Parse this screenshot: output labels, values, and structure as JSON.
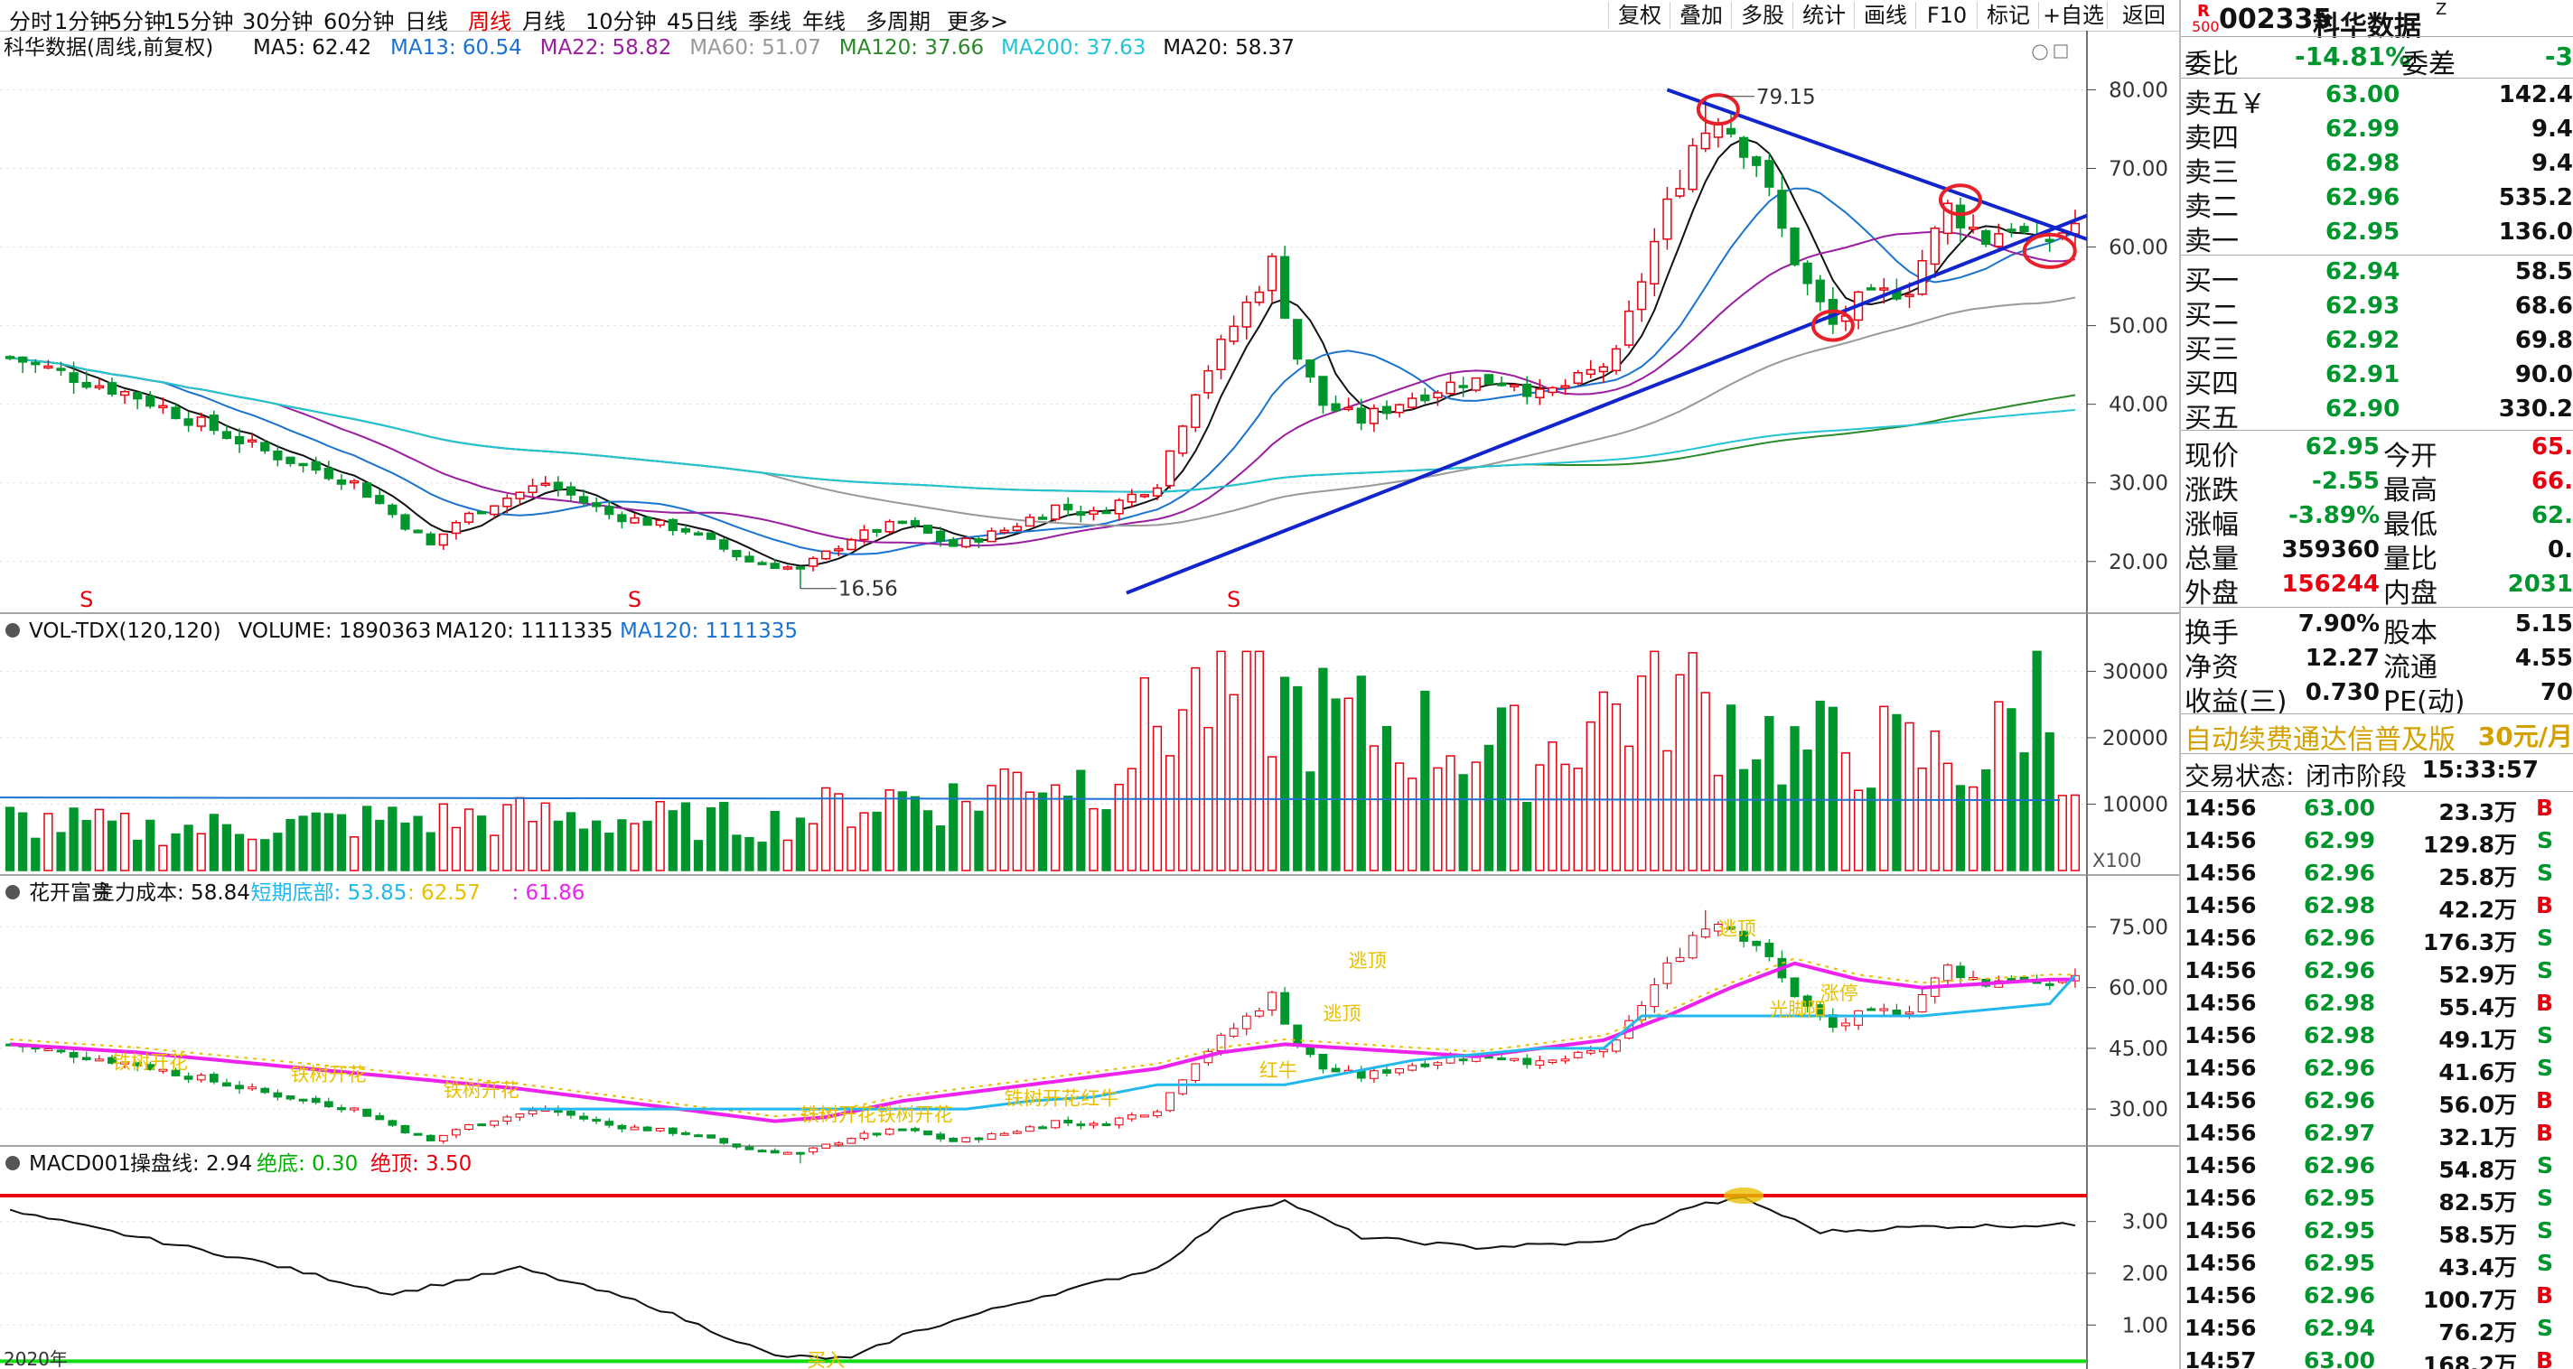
{
  "toolbar": {
    "periods": [
      "分时",
      "1分钟",
      "5分钟",
      "15分钟",
      "30分钟",
      "60分钟",
      "日线",
      "周线",
      "月线",
      "10分钟",
      "45日线",
      "季线",
      "年线",
      "多周期",
      "更多>"
    ],
    "active_period": 7,
    "right_buttons": [
      "复权",
      "叠加",
      "多股",
      "统计",
      "画线",
      "F10",
      "标记",
      "+自选",
      "返回"
    ]
  },
  "colors": {
    "up": "#e8000f",
    "down": "#00962d",
    "ma5": "#111111",
    "ma13": "#1a73d1",
    "ma22": "#9b1ea0",
    "ma60": "#999999",
    "ma120": "#2a8a2a",
    "ma200": "#22c4d6",
    "trend": "#1224cc",
    "marker": "#e8202a",
    "magenta": "#ee22ee",
    "yellow": "#e8c000",
    "cyan": "#22b8ee"
  },
  "price_panel": {
    "title": "科华数据(周线,前复权)",
    "legend": [
      {
        "text": "MA5: 62.42",
        "color": "#111111"
      },
      {
        "text": "MA13: 60.54",
        "color": "#1a73d1"
      },
      {
        "text": "MA22: 58.82",
        "color": "#9b1ea0"
      },
      {
        "text": "MA60: 51.07",
        "color": "#999999"
      },
      {
        "text": "MA120: 37.66",
        "color": "#2a8a2a"
      },
      {
        "text": "MA200: 37.63",
        "color": "#22c4d6"
      },
      {
        "text": "MA20: 58.37",
        "color": "#111111"
      }
    ],
    "y_ticks": [
      "80.00",
      "70.00",
      "60.00",
      "50.00",
      "40.00",
      "30.00",
      "20.00"
    ],
    "high_label": "79.15",
    "low_label": "16.56",
    "s_marker": "S"
  },
  "vol_panel": {
    "legend": [
      {
        "text": "VOL-TDX(120,120)",
        "color": "#111111"
      },
      {
        "text": "VOLUME: 1890363",
        "color": "#111111"
      },
      {
        "text": "MA120: 1111335",
        "color": "#111111"
      },
      {
        "text": "MA120: 1111335",
        "color": "#1a73d1"
      }
    ],
    "y_ticks": [
      "30000",
      "20000",
      "10000"
    ],
    "unit": "X100"
  },
  "hk_panel": {
    "legend": [
      {
        "text": "花开富贵",
        "color": "#111111"
      },
      {
        "text": "主力成本: 58.84",
        "color": "#111111"
      },
      {
        "text": "短期底部: 53.85",
        "color": "#22b8ee"
      },
      {
        "text": ": 62.57",
        "color": "#e8c000"
      },
      {
        "text": ": 61.86",
        "color": "#ee22ee"
      }
    ],
    "y_ticks": [
      "75.00",
      "60.00",
      "45.00",
      "30.00"
    ],
    "labels": [
      "铁树开花",
      "铁树开花",
      "铁树开花",
      "铁树开花",
      "铁树开花",
      "铁树开花",
      "红牛",
      "红牛",
      "逃顶",
      "逃顶",
      "逃顶",
      "光脚阳",
      "涨停"
    ]
  },
  "macd_panel": {
    "legend": [
      {
        "text": "MACD001",
        "color": "#111111"
      },
      {
        "text": "操盘线: 2.94",
        "color": "#111111"
      },
      {
        "text": "绝底: 0.30",
        "color": "#00b000"
      },
      {
        "text": "绝顶: 3.50",
        "color": "#e8000f"
      }
    ],
    "y_ticks": [
      "3.00",
      "2.00",
      "1.00"
    ],
    "bottom_label": "买入",
    "x_partial": "2020年"
  },
  "chart_data": {
    "type": "candlestick",
    "period": "weekly",
    "high": 79.15,
    "low": 16.56,
    "ylim": [
      14,
      82
    ],
    "close_path": [
      [
        0,
        46
      ],
      [
        10,
        41
      ],
      [
        20,
        34
      ],
      [
        27,
        30
      ],
      [
        33,
        22
      ],
      [
        35,
        25
      ],
      [
        38,
        27.5
      ],
      [
        42,
        30
      ],
      [
        47,
        26
      ],
      [
        53,
        24
      ],
      [
        58,
        20
      ],
      [
        62,
        19
      ],
      [
        66,
        23
      ],
      [
        70,
        25
      ],
      [
        74,
        22
      ],
      [
        78,
        24
      ],
      [
        82,
        27
      ],
      [
        85,
        26
      ],
      [
        90,
        30
      ],
      [
        93,
        42
      ],
      [
        96,
        50
      ],
      [
        99,
        58
      ],
      [
        101,
        46
      ],
      [
        103,
        40
      ],
      [
        106,
        38
      ],
      [
        110,
        41
      ],
      [
        114,
        43
      ],
      [
        118,
        43
      ],
      [
        120,
        41
      ],
      [
        123,
        43
      ],
      [
        126,
        46
      ],
      [
        128,
        56
      ],
      [
        130,
        65
      ],
      [
        132,
        73
      ],
      [
        134,
        77
      ],
      [
        137,
        71
      ],
      [
        139,
        62
      ],
      [
        141,
        55
      ],
      [
        143,
        50
      ],
      [
        145,
        53
      ],
      [
        147,
        54
      ],
      [
        149,
        55
      ],
      [
        152,
        65
      ],
      [
        155,
        61
      ],
      [
        157,
        63
      ],
      [
        159,
        60
      ],
      [
        161,
        62
      ],
      [
        162,
        62.95
      ]
    ],
    "vol_path": [
      [
        0,
        80
      ],
      [
        10,
        65
      ],
      [
        20,
        70
      ],
      [
        30,
        80
      ],
      [
        40,
        85
      ],
      [
        50,
        80
      ],
      [
        60,
        75
      ],
      [
        65,
        100
      ],
      [
        70,
        120
      ],
      [
        75,
        110
      ],
      [
        80,
        160
      ],
      [
        85,
        140
      ],
      [
        90,
        240
      ],
      [
        95,
        290
      ],
      [
        100,
        260
      ],
      [
        105,
        230
      ],
      [
        110,
        220
      ],
      [
        115,
        200
      ],
      [
        120,
        180
      ],
      [
        123,
        230
      ],
      [
        126,
        260
      ],
      [
        130,
        290
      ],
      [
        133,
        260
      ],
      [
        136,
        230
      ],
      [
        140,
        190
      ],
      [
        145,
        200
      ],
      [
        150,
        180
      ],
      [
        155,
        170
      ],
      [
        159,
        300
      ],
      [
        162,
        150
      ]
    ],
    "vol_ma_level": 110,
    "volume_ylim": [
      0,
      340
    ],
    "hk_cost_path": [
      [
        0,
        46
      ],
      [
        10,
        44
      ],
      [
        20,
        41
      ],
      [
        30,
        38
      ],
      [
        40,
        35
      ],
      [
        45,
        33
      ],
      [
        50,
        31
      ],
      [
        55,
        29
      ],
      [
        60,
        27
      ],
      [
        64,
        28
      ],
      [
        70,
        32
      ],
      [
        80,
        36
      ],
      [
        90,
        40
      ],
      [
        95,
        44
      ],
      [
        100,
        46
      ],
      [
        105,
        45
      ],
      [
        110,
        44
      ],
      [
        115,
        43
      ],
      [
        120,
        45
      ],
      [
        125,
        47
      ],
      [
        130,
        53
      ],
      [
        135,
        60
      ],
      [
        140,
        66
      ],
      [
        145,
        62
      ],
      [
        150,
        60
      ],
      [
        155,
        61
      ],
      [
        160,
        62
      ],
      [
        162,
        62
      ]
    ],
    "hk_bottom_path": [
      [
        40,
        30
      ],
      [
        60,
        30
      ],
      [
        75,
        30
      ],
      [
        80,
        32
      ],
      [
        85,
        33
      ],
      [
        90,
        36
      ],
      [
        100,
        36
      ],
      [
        110,
        42
      ],
      [
        120,
        45
      ],
      [
        125,
        45
      ],
      [
        128,
        53
      ],
      [
        140,
        53
      ],
      [
        150,
        53
      ],
      [
        160,
        56
      ],
      [
        162,
        63
      ]
    ],
    "hk_ylim": [
      22,
      80
    ],
    "macd_path": [
      [
        0,
        3.2
      ],
      [
        20,
        2.2
      ],
      [
        30,
        1.6
      ],
      [
        40,
        2.1
      ],
      [
        50,
        1.4
      ],
      [
        60,
        0.4
      ],
      [
        66,
        0.35
      ],
      [
        70,
        0.8
      ],
      [
        80,
        1.5
      ],
      [
        90,
        2.1
      ],
      [
        96,
        3.2
      ],
      [
        100,
        3.4
      ],
      [
        106,
        2.7
      ],
      [
        115,
        2.5
      ],
      [
        125,
        2.6
      ],
      [
        132,
        3.3
      ],
      [
        136,
        3.45
      ],
      [
        142,
        2.8
      ],
      [
        150,
        2.9
      ],
      [
        162,
        2.94
      ]
    ],
    "macd_top": 3.5,
    "macd_bottom": 0.3,
    "macd_ylim": [
      0.15,
      3.85
    ],
    "x_count": 163
  },
  "quote": {
    "code": "002335",
    "name": "科华数据",
    "z_mark": "Z",
    "r_badge": [
      "R",
      "500"
    ],
    "weibi_label": "委比",
    "weibi_value": "-14.81%",
    "weicha_label": "委差",
    "weicha_value": "-3",
    "asks": [
      {
        "label": "卖五￥",
        "price": "63.00",
        "vol": "142.4"
      },
      {
        "label": "卖四",
        "price": "62.99",
        "vol": "9.4"
      },
      {
        "label": "卖三",
        "price": "62.98",
        "vol": "9.4"
      },
      {
        "label": "卖二",
        "price": "62.96",
        "vol": "535.2"
      },
      {
        "label": "卖一",
        "price": "62.95",
        "vol": "136.0"
      }
    ],
    "bids": [
      {
        "label": "买一",
        "price": "62.94",
        "vol": "58.5"
      },
      {
        "label": "买二",
        "price": "62.93",
        "vol": "68.6"
      },
      {
        "label": "买三",
        "price": "62.92",
        "vol": "69.8"
      },
      {
        "label": "买四",
        "price": "62.91",
        "vol": "90.0"
      },
      {
        "label": "买五",
        "price": "62.90",
        "vol": "330.2"
      }
    ],
    "stats": [
      {
        "l1": "现价",
        "v1": "62.95",
        "c1": "#00962d",
        "l2": "今开",
        "v2": "65.",
        "c2": "#e8000f"
      },
      {
        "l1": "涨跌",
        "v1": "-2.55",
        "c1": "#00962d",
        "l2": "最高",
        "v2": "66.",
        "c2": "#e8000f"
      },
      {
        "l1": "涨幅",
        "v1": "-3.89%",
        "c1": "#00962d",
        "l2": "最低",
        "v2": "62.",
        "c2": "#00962d"
      },
      {
        "l1": "总量",
        "v1": "359360",
        "c1": "#111111",
        "l2": "量比",
        "v2": "0.",
        "c2": "#111111"
      },
      {
        "l1": "外盘",
        "v1": "156244",
        "c1": "#e8000f",
        "l2": "内盘",
        "v2": "2031",
        "c2": "#00962d"
      }
    ],
    "stats2": [
      {
        "l1": "换手",
        "v1": "7.90%",
        "l2": "股本",
        "v2": "5.15"
      },
      {
        "l1": "净资",
        "v1": "12.27",
        "l2": "流通",
        "v2": "4.55"
      },
      {
        "l1": "收益(三)",
        "v1": "0.730",
        "l2": "PE(动)",
        "v2": "70"
      }
    ],
    "ad_text": "自动续费通达信普及版",
    "ad_price": "30元/月",
    "trade_status_label": "交易状态:",
    "trade_status": "闭市阶段",
    "trade_time": "15:33:57",
    "ticks": [
      {
        "t": "14:56",
        "p": "63.00",
        "v": "23.3万",
        "bs": "B"
      },
      {
        "t": "14:56",
        "p": "62.99",
        "v": "129.8万",
        "bs": "S"
      },
      {
        "t": "14:56",
        "p": "62.96",
        "v": "25.8万",
        "bs": "S"
      },
      {
        "t": "14:56",
        "p": "62.98",
        "v": "42.2万",
        "bs": "B"
      },
      {
        "t": "14:56",
        "p": "62.96",
        "v": "176.3万",
        "bs": "S"
      },
      {
        "t": "14:56",
        "p": "62.96",
        "v": "52.9万",
        "bs": "S"
      },
      {
        "t": "14:56",
        "p": "62.98",
        "v": "55.4万",
        "bs": "B"
      },
      {
        "t": "14:56",
        "p": "62.98",
        "v": "49.1万",
        "bs": "S"
      },
      {
        "t": "14:56",
        "p": "62.96",
        "v": "41.6万",
        "bs": "S"
      },
      {
        "t": "14:56",
        "p": "62.96",
        "v": "56.0万",
        "bs": "B"
      },
      {
        "t": "14:56",
        "p": "62.97",
        "v": "32.1万",
        "bs": "B"
      },
      {
        "t": "14:56",
        "p": "62.96",
        "v": "54.8万",
        "bs": "S"
      },
      {
        "t": "14:56",
        "p": "62.95",
        "v": "82.5万",
        "bs": "S"
      },
      {
        "t": "14:56",
        "p": "62.95",
        "v": "58.5万",
        "bs": "S"
      },
      {
        "t": "14:56",
        "p": "62.95",
        "v": "43.4万",
        "bs": "S"
      },
      {
        "t": "14:56",
        "p": "62.96",
        "v": "100.7万",
        "bs": "B"
      },
      {
        "t": "14:56",
        "p": "62.94",
        "v": "76.2万",
        "bs": "S"
      },
      {
        "t": "14:57",
        "p": "63.00",
        "v": "168.2万",
        "bs": "B"
      }
    ]
  }
}
